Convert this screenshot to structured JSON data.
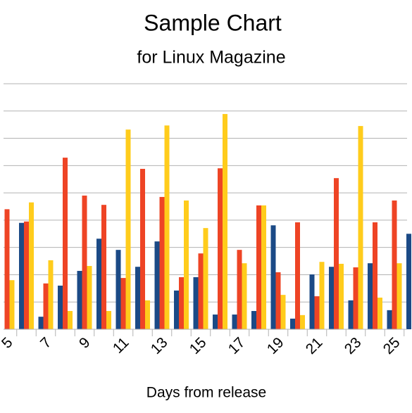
{
  "chart_data": {
    "type": "bar",
    "title": "Sample Chart",
    "subtitle": "for Linux Magazine",
    "x_label": "Days from release",
    "categories": [
      "5",
      null,
      "7",
      null,
      "9",
      null,
      "11",
      null,
      "13",
      null,
      "15",
      null,
      "17",
      null,
      "19",
      null,
      "21",
      null,
      "23",
      null,
      "25",
      null
    ],
    "series": [
      {
        "color": "#1b4a86",
        "values": [
          null,
          3.9,
          0.46,
          1.6,
          2.14,
          3.32,
          2.91,
          2.29,
          3.22,
          1.42,
          1.91,
          0.54,
          0.54,
          0.67,
          3.81,
          0.39,
          2.01,
          2.29,
          1.06,
          2.42,
          0.7,
          3.5
        ]
      },
      {
        "color": "#ee4425",
        "values": [
          4.4,
          3.95,
          1.68,
          6.29,
          4.9,
          4.56,
          1.88,
          5.88,
          4.85,
          1.91,
          2.78,
          5.9,
          2.91,
          4.54,
          2.09,
          3.92,
          1.21,
          5.54,
          2.27,
          3.92,
          4.72,
          null
        ]
      },
      {
        "color": "#ffcc1c",
        "values": [
          1.8,
          4.65,
          2.53,
          0.67,
          2.32,
          0.67,
          7.32,
          1.06,
          7.47,
          4.72,
          3.71,
          7.89,
          2.42,
          4.54,
          1.26,
          0.52,
          2.47,
          2.4,
          7.45,
          1.16,
          2.42,
          null
        ]
      }
    ],
    "ylim": [
      0,
      9
    ],
    "yticks": [
      0,
      1,
      2,
      3,
      4,
      5,
      6,
      7,
      8,
      9
    ],
    "grid": true
  }
}
